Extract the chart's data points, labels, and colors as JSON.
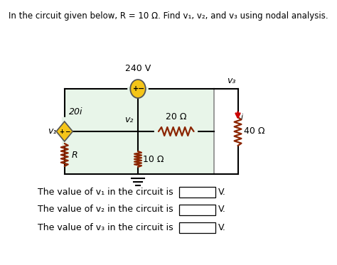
{
  "title": "In the circuit given below, R = 10 Ω. Find v₁, v₂, and v₃ using nodal analysis.",
  "voltage_source_240": "240 V",
  "current_source_label": "20i",
  "r_label": "R",
  "r20_label": "20 Ω",
  "r10_label": "10 Ω",
  "r40_label": "40 Ω",
  "v1_label": "v₁",
  "v2_label": "v₂",
  "v3_label": "v₃",
  "i_label": "i",
  "box_bg": "#e8f5e9",
  "box_edge": "#888888",
  "circle_color": "#f5c518",
  "circle_edge": "#555555",
  "diamond_color": "#f5c518",
  "diamond_edge": "#555555",
  "resistor_color": "#8B2500",
  "arrow_color": "#cc0000",
  "text_color": "#000000",
  "line_color": "#000000",
  "answer_line1": "The value of v₁ in the circuit is",
  "answer_line2": "The value of v₂ in the circuit is",
  "answer_line3": "The value of v₃ in the circuit is",
  "v_unit": "V."
}
